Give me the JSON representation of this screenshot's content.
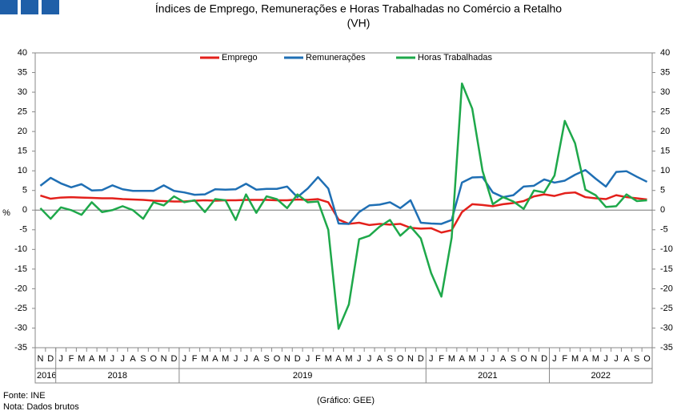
{
  "chart_data": {
    "type": "line",
    "title": "Índices de Emprego, Remunerações e Horas Trabalhadas no Comércio a Retalho",
    "subtitle": "(VH)",
    "y_label": "%",
    "source": "Fonte: INE",
    "note": "Nota: Dados brutos",
    "credit": "(Gráfico: GEE)",
    "categories": [
      "N",
      "D",
      "J",
      "F",
      "M",
      "A",
      "M",
      "J",
      "J",
      "A",
      "S",
      "O",
      "N",
      "D",
      "J",
      "F",
      "M",
      "A",
      "M",
      "J",
      "J",
      "A",
      "S",
      "O",
      "N",
      "D",
      "J",
      "F",
      "M",
      "A",
      "M",
      "J",
      "J",
      "A",
      "S",
      "O",
      "N",
      "D",
      "J",
      "F",
      "M",
      "A",
      "M",
      "J",
      "J",
      "A",
      "S",
      "O",
      "N",
      "D",
      "J",
      "F",
      "M",
      "A",
      "M",
      "J",
      "J",
      "A",
      "S",
      "O"
    ],
    "year_groups": [
      {
        "label": "2016",
        "span": 2
      },
      {
        "label": "2018",
        "span": 12
      },
      {
        "label": "2019",
        "span": 24
      },
      {
        "label": "2021",
        "span": 12
      },
      {
        "label": "2022",
        "span": 10
      }
    ],
    "series": [
      {
        "name": "Emprego",
        "color": "#e3201b",
        "values": [
          3.7,
          2.9,
          3.2,
          3.3,
          3.2,
          3.1,
          3.0,
          3.0,
          2.8,
          2.7,
          2.6,
          2.4,
          2.3,
          2.2,
          2.2,
          2.4,
          2.5,
          2.4,
          2.5,
          2.5,
          2.6,
          2.6,
          2.6,
          2.5,
          2.5,
          2.7,
          2.6,
          2.8,
          2.0,
          -2.4,
          -3.5,
          -3.2,
          -3.8,
          -3.5,
          -3.7,
          -3.5,
          -4.5,
          -4.7,
          -4.6,
          -5.7,
          -5.1,
          -0.5,
          1.5,
          1.3,
          1.0,
          1.5,
          1.8,
          2.3,
          3.5,
          4.0,
          3.6,
          4.3,
          4.5,
          3.3,
          3.0,
          2.8,
          3.8,
          3.3,
          3.0,
          2.7
        ]
      },
      {
        "name": "Remunerações",
        "color": "#1f6fb4",
        "values": [
          6.2,
          8.2,
          6.8,
          5.8,
          6.6,
          5.0,
          5.1,
          6.3,
          5.3,
          4.9,
          4.9,
          4.9,
          6.3,
          4.9,
          4.5,
          3.9,
          4.0,
          5.3,
          5.2,
          5.3,
          6.7,
          5.2,
          5.4,
          5.4,
          6.0,
          3.3,
          5.5,
          8.4,
          5.5,
          -3.4,
          -3.5,
          -0.5,
          1.2,
          1.4,
          2.0,
          0.5,
          2.5,
          -3.2,
          -3.4,
          -3.5,
          -2.5,
          7.0,
          8.3,
          8.4,
          4.5,
          3.3,
          3.8,
          6.0,
          6.2,
          7.8,
          7.0,
          7.5,
          9.0,
          10.2,
          8.0,
          6.0,
          9.7,
          9.9,
          8.5,
          7.2
        ]
      },
      {
        "name": "Horas Trabalhadas",
        "color": "#1ea84a",
        "values": [
          0.5,
          -2.2,
          0.7,
          0,
          -1.2,
          2.0,
          -0.5,
          0,
          1.0,
          0,
          -2.2,
          2.0,
          1.2,
          3.5,
          2.0,
          2.5,
          -0.5,
          2.8,
          2.5,
          -2.5,
          4.0,
          -0.7,
          3.5,
          2.8,
          0.5,
          4.0,
          2.0,
          2.2,
          -5,
          -30.2,
          -24,
          -7.4,
          -6.5,
          -4.2,
          -2.5,
          -6.5,
          -4.2,
          -7.2,
          -16,
          -22,
          -7,
          32.2,
          25.8,
          10,
          1.5,
          3.3,
          2.2,
          0.3,
          5.0,
          4.5,
          8.8,
          22.7,
          17.0,
          5.2,
          3.8,
          0.8,
          1.0,
          4.0,
          2.3,
          2.5
        ]
      }
    ],
    "ylim": [
      -35,
      40
    ],
    "yticks": [
      -35,
      -30,
      -25,
      -20,
      -15,
      -10,
      -5,
      0,
      5,
      10,
      15,
      20,
      25,
      30,
      35,
      40
    ],
    "y2lim": [
      -35,
      40
    ],
    "y2ticks": [
      -35,
      -30,
      -25,
      -20,
      -15,
      -10,
      -5,
      0,
      5,
      10,
      15,
      20,
      25,
      30,
      35,
      40
    ],
    "legend": "top"
  }
}
